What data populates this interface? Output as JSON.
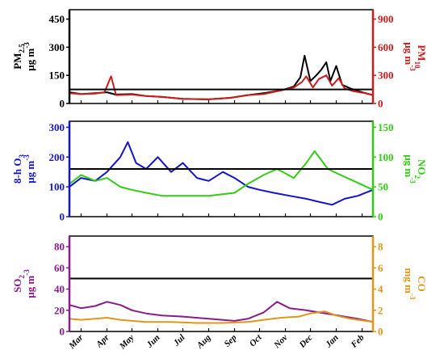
{
  "chart_data": [
    {
      "type": "line",
      "x_range": [
        "2016-03-01",
        "2017-02-28"
      ],
      "x_ticks": [
        "Mar",
        "Apr",
        "May",
        "Jun",
        "Jul",
        "Aug",
        "Sep",
        "Oct",
        "Nov",
        "Dec",
        "Jan",
        "Feb"
      ],
      "left_axis": {
        "label_main": "PM",
        "label_sub": "2.5",
        "unit": "μg m",
        "unit_sup": "-3",
        "ylim": [
          0,
          500
        ],
        "ticks": [
          0,
          150,
          300,
          450
        ],
        "color": "#000000"
      },
      "right_axis": {
        "label_main": "PM",
        "label_sub": "10",
        "unit": "μg m",
        "unit_sup": "-3",
        "ylim": [
          0,
          1000
        ],
        "ticks": [
          0,
          300,
          600,
          900
        ],
        "color": "#cc1c1c"
      },
      "threshold": {
        "axis": "left",
        "value": 75,
        "color": "#000000"
      },
      "series": [
        {
          "axis": "left",
          "color": "#000000",
          "points": [
            [
              "2016-03-01",
              60
            ],
            [
              "2016-03-15",
              50
            ],
            [
              "2016-04-01",
              55
            ],
            [
              "2016-04-15",
              60
            ],
            [
              "2016-04-25",
              48
            ],
            [
              "2016-05-15",
              50
            ],
            [
              "2016-06-01",
              40
            ],
            [
              "2016-06-20",
              35
            ],
            [
              "2016-07-15",
              25
            ],
            [
              "2016-08-15",
              22
            ],
            [
              "2016-09-10",
              30
            ],
            [
              "2016-10-01",
              45
            ],
            [
              "2016-10-20",
              55
            ],
            [
              "2016-11-10",
              70
            ],
            [
              "2016-11-25",
              90
            ],
            [
              "2016-12-03",
              140
            ],
            [
              "2016-12-08",
              255
            ],
            [
              "2016-12-15",
              120
            ],
            [
              "2016-12-22",
              150
            ],
            [
              "2016-12-28",
              180
            ],
            [
              "2017-01-03",
              220
            ],
            [
              "2017-01-08",
              120
            ],
            [
              "2017-01-15",
              200
            ],
            [
              "2017-01-22",
              100
            ],
            [
              "2017-02-01",
              80
            ],
            [
              "2017-02-15",
              60
            ],
            [
              "2017-02-28",
              45
            ]
          ]
        },
        {
          "axis": "right",
          "color": "#cc1c1c",
          "points": [
            [
              "2016-03-01",
              110
            ],
            [
              "2016-03-15",
              100
            ],
            [
              "2016-04-01",
              105
            ],
            [
              "2016-04-12",
              120
            ],
            [
              "2016-04-20",
              290
            ],
            [
              "2016-04-26",
              90
            ],
            [
              "2016-05-15",
              95
            ],
            [
              "2016-06-01",
              80
            ],
            [
              "2016-06-20",
              70
            ],
            [
              "2016-07-15",
              50
            ],
            [
              "2016-08-15",
              45
            ],
            [
              "2016-09-10",
              60
            ],
            [
              "2016-10-01",
              90
            ],
            [
              "2016-10-20",
              100
            ],
            [
              "2016-11-10",
              140
            ],
            [
              "2016-11-25",
              170
            ],
            [
              "2016-12-05",
              230
            ],
            [
              "2016-12-10",
              290
            ],
            [
              "2016-12-18",
              170
            ],
            [
              "2016-12-25",
              260
            ],
            [
              "2017-01-03",
              300
            ],
            [
              "2017-01-10",
              190
            ],
            [
              "2017-01-18",
              270
            ],
            [
              "2017-01-25",
              160
            ],
            [
              "2017-02-05",
              130
            ],
            [
              "2017-02-18",
              110
            ],
            [
              "2017-02-28",
              90
            ]
          ]
        }
      ]
    },
    {
      "type": "line",
      "x_range": [
        "2016-03-01",
        "2017-02-28"
      ],
      "x_ticks": [
        "Mar",
        "Apr",
        "May",
        "Jun",
        "Jul",
        "Aug",
        "Sep",
        "Oct",
        "Nov",
        "Dec",
        "Jan",
        "Feb"
      ],
      "left_axis": {
        "label_main": "8-h O",
        "label_sub": "3",
        "unit": "μg m",
        "unit_sup": "-3",
        "ylim": [
          0,
          320
        ],
        "ticks": [
          0,
          100,
          200,
          300
        ],
        "color": "#1414cc"
      },
      "right_axis": {
        "label_main": "NO",
        "label_sub": "2",
        "unit": "μg m",
        "unit_sup": "-3",
        "ylim": [
          0,
          160
        ],
        "ticks": [
          0,
          50,
          100,
          150
        ],
        "color": "#33cc14"
      },
      "threshold": {
        "axis": "left",
        "value": 160,
        "color": "#000000"
      },
      "series": [
        {
          "axis": "left",
          "color": "#1414cc",
          "points": [
            [
              "2016-03-01",
              100
            ],
            [
              "2016-03-15",
              130
            ],
            [
              "2016-04-01",
              120
            ],
            [
              "2016-04-15",
              150
            ],
            [
              "2016-05-01",
              200
            ],
            [
              "2016-05-10",
              250
            ],
            [
              "2016-05-20",
              180
            ],
            [
              "2016-06-01",
              160
            ],
            [
              "2016-06-15",
              200
            ],
            [
              "2016-07-01",
              150
            ],
            [
              "2016-07-15",
              180
            ],
            [
              "2016-08-01",
              130
            ],
            [
              "2016-08-15",
              120
            ],
            [
              "2016-09-01",
              150
            ],
            [
              "2016-09-15",
              130
            ],
            [
              "2016-10-01",
              100
            ],
            [
              "2016-10-15",
              90
            ],
            [
              "2016-11-01",
              80
            ],
            [
              "2016-11-20",
              70
            ],
            [
              "2016-12-10",
              60
            ],
            [
              "2016-12-25",
              50
            ],
            [
              "2017-01-10",
              40
            ],
            [
              "2017-01-25",
              60
            ],
            [
              "2017-02-10",
              70
            ],
            [
              "2017-02-28",
              90
            ]
          ]
        },
        {
          "axis": "right",
          "color": "#33cc14",
          "points": [
            [
              "2016-03-01",
              55
            ],
            [
              "2016-03-15",
              70
            ],
            [
              "2016-04-01",
              60
            ],
            [
              "2016-04-15",
              65
            ],
            [
              "2016-05-01",
              50
            ],
            [
              "2016-05-15",
              45
            ],
            [
              "2016-06-01",
              40
            ],
            [
              "2016-06-20",
              35
            ],
            [
              "2016-07-15",
              35
            ],
            [
              "2016-08-15",
              35
            ],
            [
              "2016-09-15",
              40
            ],
            [
              "2016-10-01",
              55
            ],
            [
              "2016-10-20",
              70
            ],
            [
              "2016-11-05",
              80
            ],
            [
              "2016-11-25",
              65
            ],
            [
              "2016-12-10",
              90
            ],
            [
              "2016-12-20",
              110
            ],
            [
              "2017-01-05",
              80
            ],
            [
              "2017-01-20",
              70
            ],
            [
              "2017-02-05",
              60
            ],
            [
              "2017-02-28",
              45
            ]
          ]
        }
      ]
    },
    {
      "type": "line",
      "x_range": [
        "2016-03-01",
        "2017-02-28"
      ],
      "x_ticks": [
        "Mar",
        "Apr",
        "May",
        "Jun",
        "Jul",
        "Aug",
        "Sep",
        "Oct",
        "Nov",
        "Dec",
        "Jan",
        "Feb"
      ],
      "left_axis": {
        "label_main": "SO",
        "label_sub": "2",
        "unit": "μg m",
        "unit_sup": "-3",
        "ylim": [
          0,
          90
        ],
        "ticks": [
          0,
          20,
          40,
          60,
          80
        ],
        "color": "#8b1a8b"
      },
      "right_axis": {
        "label_main": "CO",
        "label_sub": "",
        "unit": "mg m",
        "unit_sup": "-3",
        "ylim": [
          0,
          9
        ],
        "ticks": [
          0,
          2,
          4,
          6,
          8
        ],
        "color": "#e0961a"
      },
      "threshold": {
        "axis": "left",
        "value": 50,
        "color": "#000000"
      },
      "series": [
        {
          "axis": "left",
          "color": "#8b1a8b",
          "points": [
            [
              "2016-03-01",
              25
            ],
            [
              "2016-03-15",
              22
            ],
            [
              "2016-04-01",
              24
            ],
            [
              "2016-04-15",
              28
            ],
            [
              "2016-05-01",
              25
            ],
            [
              "2016-05-15",
              20
            ],
            [
              "2016-06-01",
              17
            ],
            [
              "2016-06-20",
              15
            ],
            [
              "2016-07-15",
              14
            ],
            [
              "2016-08-15",
              12
            ],
            [
              "2016-09-15",
              10
            ],
            [
              "2016-10-01",
              12
            ],
            [
              "2016-10-20",
              18
            ],
            [
              "2016-11-05",
              28
            ],
            [
              "2016-11-20",
              22
            ],
            [
              "2016-12-10",
              20
            ],
            [
              "2016-12-25",
              18
            ],
            [
              "2017-01-10",
              16
            ],
            [
              "2017-01-25",
              14
            ],
            [
              "2017-02-10",
              12
            ],
            [
              "2017-02-28",
              9
            ]
          ]
        },
        {
          "axis": "right",
          "color": "#e0961a",
          "points": [
            [
              "2016-03-01",
              1.2
            ],
            [
              "2016-03-15",
              1.1
            ],
            [
              "2016-04-01",
              1.2
            ],
            [
              "2016-04-15",
              1.3
            ],
            [
              "2016-05-01",
              1.1
            ],
            [
              "2016-05-15",
              1.0
            ],
            [
              "2016-06-01",
              0.9
            ],
            [
              "2016-07-01",
              0.9
            ],
            [
              "2016-08-01",
              0.8
            ],
            [
              "2016-09-01",
              0.8
            ],
            [
              "2016-10-01",
              0.9
            ],
            [
              "2016-10-20",
              1.1
            ],
            [
              "2016-11-10",
              1.3
            ],
            [
              "2016-12-01",
              1.4
            ],
            [
              "2016-12-15",
              1.7
            ],
            [
              "2017-01-01",
              1.9
            ],
            [
              "2017-01-15",
              1.5
            ],
            [
              "2017-02-01",
              1.2
            ],
            [
              "2017-02-28",
              0.9
            ]
          ]
        }
      ]
    }
  ]
}
